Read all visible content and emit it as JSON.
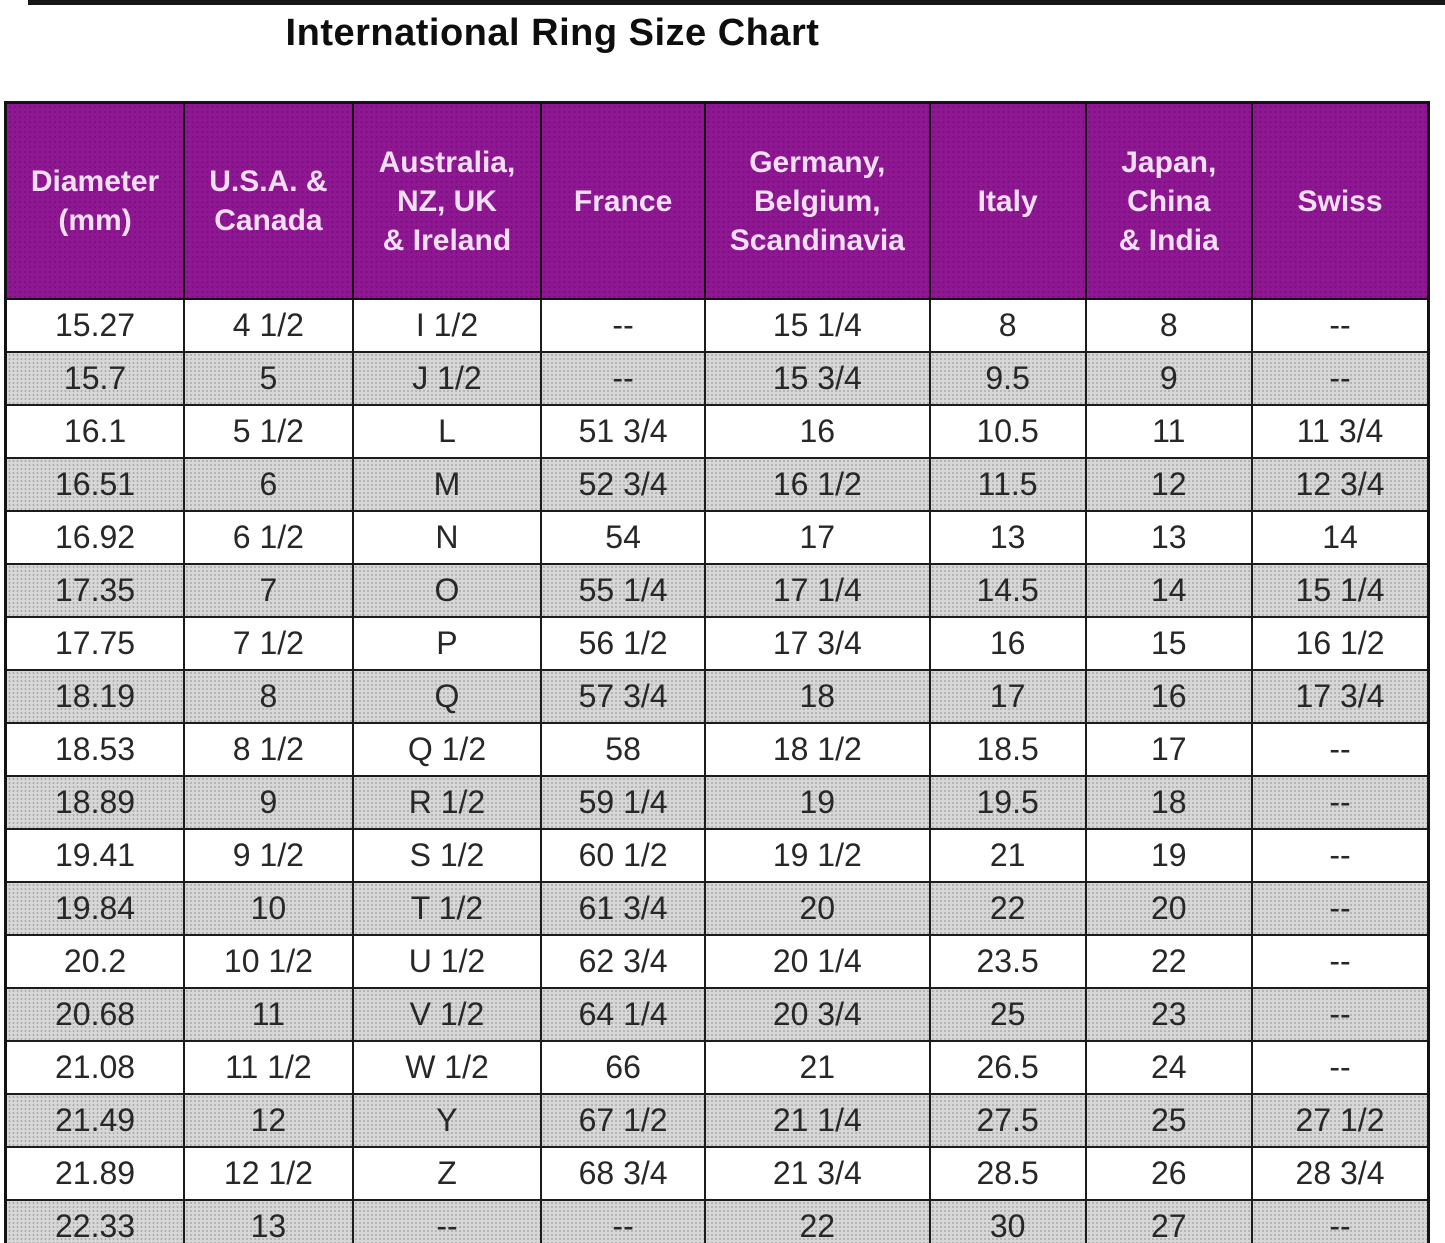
{
  "title": "International Ring Size Chart",
  "colors": {
    "header_background": "#8e1792",
    "header_text": "#f3dff3",
    "row_alt_background": "#d7d7d7",
    "row_background": "#ffffff",
    "border": "#131313",
    "body_text": "#272727"
  },
  "chart_data": {
    "type": "table",
    "title": "International Ring Size Chart",
    "columns": [
      "Diameter (mm)",
      "U.S.A. & Canada",
      "Australia, NZ, UK & Ireland",
      "France",
      "Germany, Belgium, Scandinavia",
      "Italy",
      "Japan, China & India",
      "Swiss"
    ],
    "column_keys": [
      "diameter-mm",
      "usa-canada",
      "australia-nz-uk-ireland",
      "france",
      "germany-belgium-scandinavia",
      "italy",
      "japan-china-india",
      "swiss"
    ],
    "header_display": [
      "Diameter\n(mm)",
      "U.S.A. &\nCanada",
      "Australia,\nNZ, UK\n& Ireland",
      "France",
      "Germany,\nBelgium,\nScandinavia",
      "Italy",
      "Japan,\nChina\n& India",
      "Swiss"
    ],
    "rows": [
      [
        "15.27",
        "4 1/2",
        "I 1/2",
        "--",
        "15 1/4",
        "8",
        "8",
        "--"
      ],
      [
        "15.7",
        "5",
        "J 1/2",
        "--",
        "15 3/4",
        "9.5",
        "9",
        "--"
      ],
      [
        "16.1",
        "5 1/2",
        "L",
        "51 3/4",
        "16",
        "10.5",
        "11",
        "11 3/4"
      ],
      [
        "16.51",
        "6",
        "M",
        "52 3/4",
        "16 1/2",
        "11.5",
        "12",
        "12 3/4"
      ],
      [
        "16.92",
        "6 1/2",
        "N",
        "54",
        "17",
        "13",
        "13",
        "14"
      ],
      [
        "17.35",
        "7",
        "O",
        "55 1/4",
        "17 1/4",
        "14.5",
        "14",
        "15 1/4"
      ],
      [
        "17.75",
        "7 1/2",
        "P",
        "56 1/2",
        "17 3/4",
        "16",
        "15",
        "16 1/2"
      ],
      [
        "18.19",
        "8",
        "Q",
        "57 3/4",
        "18",
        "17",
        "16",
        "17 3/4"
      ],
      [
        "18.53",
        "8 1/2",
        "Q 1/2",
        "58",
        "18 1/2",
        "18.5",
        "17",
        "--"
      ],
      [
        "18.89",
        "9",
        "R 1/2",
        "59 1/4",
        "19",
        "19.5",
        "18",
        "--"
      ],
      [
        "19.41",
        "9 1/2",
        "S 1/2",
        "60 1/2",
        "19 1/2",
        "21",
        "19",
        "--"
      ],
      [
        "19.84",
        "10",
        "T 1/2",
        "61 3/4",
        "20",
        "22",
        "20",
        "--"
      ],
      [
        "20.2",
        "10 1/2",
        "U 1/2",
        "62 3/4",
        "20 1/4",
        "23.5",
        "22",
        "--"
      ],
      [
        "20.68",
        "11",
        "V 1/2",
        "64 1/4",
        "20 3/4",
        "25",
        "23",
        "--"
      ],
      [
        "21.08",
        "11 1/2",
        "W 1/2",
        "66",
        "21",
        "26.5",
        "24",
        "--"
      ],
      [
        "21.49",
        "12",
        "Y",
        "67 1/2",
        "21 1/4",
        "27.5",
        "25",
        "27 1/2"
      ],
      [
        "21.89",
        "12 1/2",
        "Z",
        "68 3/4",
        "21 3/4",
        "28.5",
        "26",
        "28 3/4"
      ],
      [
        "22.33",
        "13",
        "--",
        "--",
        "22",
        "30",
        "27",
        "--"
      ]
    ]
  }
}
